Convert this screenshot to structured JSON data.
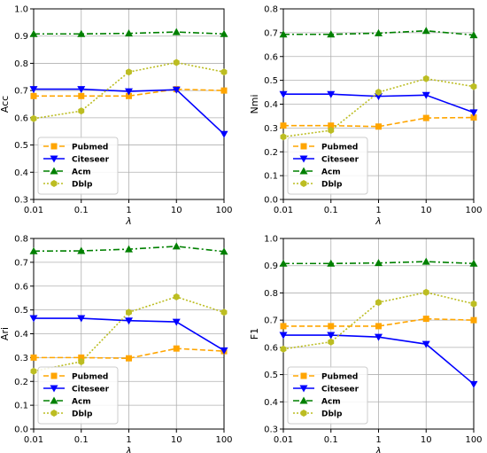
{
  "chart_data": [
    {
      "type": "line",
      "xlabel": "λ",
      "ylabel": "Acc",
      "x_scale": "log",
      "x": [
        0.01,
        0.1,
        1,
        10,
        100
      ],
      "x_ticks": [
        "0.01",
        "0.1",
        "1",
        "10",
        "100"
      ],
      "ylim": [
        0.3,
        1.0
      ],
      "y_ticks": [
        "0.3",
        "0.4",
        "0.5",
        "0.6",
        "0.7",
        "0.8",
        "0.9",
        "1.0"
      ],
      "y_tick_values": [
        0.3,
        0.4,
        0.5,
        0.6,
        0.7,
        0.8,
        0.9,
        1.0
      ],
      "grid": true,
      "legend_position": "lower-left",
      "series": [
        {
          "name": "Pubmed",
          "values": [
            0.68,
            0.68,
            0.68,
            0.705,
            0.7
          ]
        },
        {
          "name": "Citeseer",
          "values": [
            0.705,
            0.705,
            0.697,
            0.703,
            0.54
          ]
        },
        {
          "name": "Acm",
          "values": [
            0.908,
            0.908,
            0.91,
            0.915,
            0.908
          ]
        },
        {
          "name": "Dblp",
          "values": [
            0.597,
            0.625,
            0.768,
            0.803,
            0.768
          ]
        }
      ]
    },
    {
      "type": "line",
      "xlabel": "λ",
      "ylabel": "Nmi",
      "x_scale": "log",
      "x": [
        0.01,
        0.1,
        1,
        10,
        100
      ],
      "x_ticks": [
        "0.01",
        "0.1",
        "1",
        "10",
        "100"
      ],
      "ylim": [
        0.0,
        0.8
      ],
      "y_ticks": [
        "0.0",
        "0.1",
        "0.2",
        "0.3",
        "0.4",
        "0.5",
        "0.6",
        "0.7",
        "0.8"
      ],
      "y_tick_values": [
        0.0,
        0.1,
        0.2,
        0.3,
        0.4,
        0.5,
        0.6,
        0.7,
        0.8
      ],
      "grid": true,
      "legend_position": "lower-left",
      "series": [
        {
          "name": "Pubmed",
          "values": [
            0.31,
            0.31,
            0.306,
            0.342,
            0.344
          ]
        },
        {
          "name": "Citeseer",
          "values": [
            0.442,
            0.442,
            0.433,
            0.438,
            0.365
          ]
        },
        {
          "name": "Acm",
          "values": [
            0.693,
            0.693,
            0.698,
            0.708,
            0.69
          ]
        },
        {
          "name": "Dblp",
          "values": [
            0.263,
            0.29,
            0.45,
            0.507,
            0.474
          ]
        }
      ]
    },
    {
      "type": "line",
      "xlabel": "λ",
      "ylabel": "Ari",
      "x_scale": "log",
      "x": [
        0.01,
        0.1,
        1,
        10,
        100
      ],
      "x_ticks": [
        "0.01",
        "0.1",
        "1",
        "10",
        "100"
      ],
      "ylim": [
        0.0,
        0.8
      ],
      "y_ticks": [
        "0.0",
        "0.1",
        "0.2",
        "0.3",
        "0.4",
        "0.5",
        "0.6",
        "0.7",
        "0.8"
      ],
      "y_tick_values": [
        0.0,
        0.1,
        0.2,
        0.3,
        0.4,
        0.5,
        0.6,
        0.7,
        0.8
      ],
      "grid": true,
      "legend_position": "lower-left",
      "series": [
        {
          "name": "Pubmed",
          "values": [
            0.3,
            0.3,
            0.297,
            0.338,
            0.327
          ]
        },
        {
          "name": "Citeseer",
          "values": [
            0.465,
            0.465,
            0.455,
            0.45,
            0.33
          ]
        },
        {
          "name": "Acm",
          "values": [
            0.747,
            0.748,
            0.755,
            0.767,
            0.745
          ]
        },
        {
          "name": "Dblp",
          "values": [
            0.243,
            0.283,
            0.49,
            0.555,
            0.49
          ]
        }
      ]
    },
    {
      "type": "line",
      "xlabel": "λ",
      "ylabel": "F1",
      "x_scale": "log",
      "x": [
        0.01,
        0.1,
        1,
        10,
        100
      ],
      "x_ticks": [
        "0.01",
        "0.1",
        "1",
        "10",
        "100"
      ],
      "ylim": [
        0.3,
        1.0
      ],
      "y_ticks": [
        "0.3",
        "0.4",
        "0.5",
        "0.6",
        "0.7",
        "0.8",
        "0.9",
        "1.0"
      ],
      "y_tick_values": [
        0.3,
        0.4,
        0.5,
        0.6,
        0.7,
        0.8,
        0.9,
        1.0
      ],
      "grid": true,
      "legend_position": "lower-left",
      "series": [
        {
          "name": "Pubmed",
          "values": [
            0.678,
            0.678,
            0.678,
            0.705,
            0.7
          ]
        },
        {
          "name": "Citeseer",
          "values": [
            0.645,
            0.645,
            0.638,
            0.612,
            0.465
          ]
        },
        {
          "name": "Acm",
          "values": [
            0.908,
            0.908,
            0.91,
            0.915,
            0.908
          ]
        },
        {
          "name": "Dblp",
          "values": [
            0.594,
            0.62,
            0.765,
            0.802,
            0.76
          ]
        }
      ]
    }
  ],
  "series_styles": [
    {
      "color": "#FFA500",
      "dash": "dashed",
      "marker": "square"
    },
    {
      "color": "#0000FF",
      "dash": "solid",
      "marker": "triangle-down"
    },
    {
      "color": "#008000",
      "dash": "dashdot",
      "marker": "triangle-up"
    },
    {
      "color": "#BCBD22",
      "dash": "dotted",
      "marker": "hexagon"
    }
  ]
}
